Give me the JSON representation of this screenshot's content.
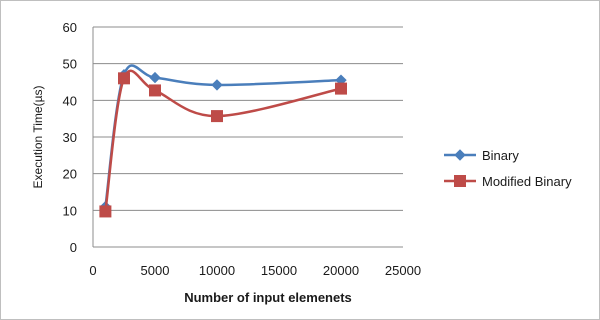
{
  "chart_data": {
    "type": "line",
    "title": "",
    "xlabel": "Number of input elemenets",
    "ylabel": "Execution Time(µs)",
    "xlim": [
      0,
      25000
    ],
    "ylim": [
      0,
      60
    ],
    "x_ticks": [
      "0",
      "5000",
      "10000",
      "15000",
      "20000",
      "25000"
    ],
    "y_ticks": [
      "0",
      "10",
      "20",
      "30",
      "40",
      "50",
      "60"
    ],
    "grid": "horizontal",
    "legend_position": "right",
    "series": [
      {
        "name": "Binary",
        "color": "#4a7ebb",
        "marker": "diamond",
        "x": [
          1000,
          2500,
          5000,
          10000,
          20000
        ],
        "y": [
          11,
          47,
          46.2,
          44.2,
          45.5
        ]
      },
      {
        "name": "Modified Binary",
        "color": "#be4b48",
        "marker": "square",
        "x": [
          1000,
          2500,
          5000,
          10000,
          20000
        ],
        "y": [
          9.7,
          46,
          42.7,
          35.7,
          43.2
        ]
      }
    ]
  }
}
